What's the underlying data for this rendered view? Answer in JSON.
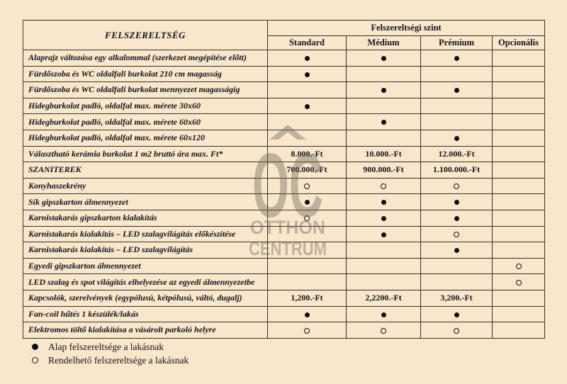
{
  "colors": {
    "background": "#f9e7cb",
    "border": "#34342c",
    "text": "#12121e",
    "watermark_gray": "#6b6557",
    "dot": "#0e0e16"
  },
  "table": {
    "corner_header": "FELSZERELTSÉG",
    "group_header": "Felszereltségi szint",
    "level_headers": [
      "Standard",
      "Médium",
      "Prémium",
      "Opcionális"
    ],
    "rows": [
      {
        "label": "Alaprajz változása egy alkalommal (szerkezet megépítése előtt)",
        "cells": [
          "filled-dot",
          "filled-dot",
          "filled-dot",
          ""
        ]
      },
      {
        "label": "Fürdőszoba és WC oldalfali burkolat 210 cm magasság",
        "cells": [
          "filled-dot",
          "",
          "",
          ""
        ]
      },
      {
        "label": "Fürdőszoba és WC oldalfali burkolat mennyezet magasságig",
        "cells": [
          "",
          "filled-dot",
          "filled-dot",
          ""
        ]
      },
      {
        "label": "Hidegburkolat  padló, oldalfal max. mérete 30x60",
        "cells": [
          "filled-dot",
          "",
          "",
          ""
        ]
      },
      {
        "label": "Hidegburkolat  padló, oldalfal  max. mérete 60x60",
        "cells": [
          "",
          "filled-dot",
          "",
          ""
        ]
      },
      {
        "label": "Hidegburkolat  padló, oldalfal max. mérete 60x120",
        "cells": [
          "",
          "",
          "filled-dot",
          ""
        ]
      },
      {
        "label": "Választható kerámia burkolat 1 m2 bruttó ára max. Ft*",
        "cells": [
          "8.000.-Ft",
          "10.000.-Ft",
          "12.000.-Ft",
          ""
        ]
      },
      {
        "label": "SZANITEREK",
        "cells": [
          "700.000.-Ft",
          "900.000.-Ft",
          "1.100.000.-Ft",
          ""
        ]
      },
      {
        "label": "Konyhaszekrény",
        "cells": [
          "open-dot",
          "open-dot",
          "open-dot",
          ""
        ]
      },
      {
        "label": "Sík gipszkarton álmennyezet",
        "cells": [
          "filled-dot",
          "filled-dot",
          "filled-dot",
          ""
        ]
      },
      {
        "label": "Karnistakarás gipszkarton kialakítás",
        "cells": [
          "open-dot",
          "filled-dot",
          "filled-dot",
          ""
        ]
      },
      {
        "label": "Karnistakarás kialakítás – LED szalagvilágítás előkészítése",
        "cells": [
          "",
          "filled-dot",
          "open-dot",
          ""
        ]
      },
      {
        "label": "Karnistakarás kialakítás – LED szalagvilágítás",
        "cells": [
          "",
          "",
          "filled-dot",
          ""
        ]
      },
      {
        "label": "Egyedi gipszkarton álmennyezet",
        "cells": [
          "",
          "",
          "",
          "open-dot"
        ]
      },
      {
        "label": "LED szalag és spot világítás elhelyezése az egyedi álmennyezetbe",
        "cells": [
          "",
          "",
          "",
          "open-dot"
        ]
      },
      {
        "label": "Kapcsolók, szerelvények (egypólusú, kétpólusú, váltó, dugalj)",
        "cells": [
          "1,200.-Ft",
          "2,2200.-Ft",
          "3,200.-Ft",
          ""
        ]
      },
      {
        "label": "Fan-coil hűtés 1 készülék/lakás",
        "cells": [
          "filled-dot",
          "filled-dot",
          "filled-dot",
          ""
        ]
      },
      {
        "label": "Elektromos töltő kialakítása a vásárolt parkoló helyre",
        "cells": [
          "open-dot",
          "open-dot",
          "open-dot",
          ""
        ]
      }
    ]
  },
  "legend": {
    "items": [
      {
        "symbol": "filled-dot",
        "text": "Alap felszereltsége a lakásnak"
      },
      {
        "symbol": "open-dot",
        "text": "Rendelhető felszereltsége a lakásnak"
      }
    ]
  },
  "watermark": {
    "monogram": "OC",
    "line1": "OTTHON",
    "line2": "CENTRUM"
  }
}
